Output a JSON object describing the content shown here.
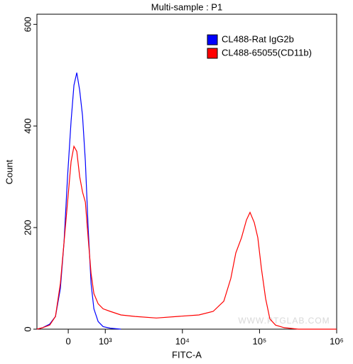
{
  "chart_data": {
    "type": "line",
    "title": "Multi-sample : P1",
    "xlabel": "FITC-A",
    "ylabel": "Count",
    "xscale": "biexponential",
    "xlim": [
      -846,
      1000000
    ],
    "ylim": [
      0,
      620
    ],
    "xticks": [
      0,
      {
        "value": 1000,
        "label": "10³"
      },
      {
        "value": 10000,
        "label": "10⁴"
      },
      {
        "value": 100000,
        "label": "10⁵"
      },
      {
        "value": 1000000,
        "label": "10⁶"
      }
    ],
    "yticks": [
      0,
      200,
      400,
      600
    ],
    "legend": "upper right",
    "watermark": "WWW.PTGLAB.COM",
    "x": [
      -846,
      -692,
      -500,
      -346,
      -212,
      -115,
      -19,
      77,
      154,
      231,
      308,
      385,
      462,
      538,
      615,
      692,
      808,
      942,
      1160,
      1594,
      2434,
      4597,
      8678,
      16390,
      25030,
      34380,
      42490,
      49290,
      58390,
      67700,
      75260,
      85490,
      95040,
      105600,
      120000,
      136200,
      161400,
      208200,
      317900,
      1000000
    ],
    "series": [
      {
        "name": "CL488-Rat IgG2b",
        "color": "#0000ff",
        "values": [
          0,
          3,
          10,
          25,
          80,
          170,
          300,
          410,
          480,
          505,
          470,
          420,
          330,
          200,
          90,
          40,
          15,
          5,
          2,
          0,
          null,
          null,
          null,
          null,
          null,
          null,
          null,
          null,
          null,
          null,
          null,
          null,
          null,
          null,
          null,
          null,
          null,
          null,
          null,
          null
        ]
      },
      {
        "name": "CL488-65055(CD11b)",
        "color": "#ff0000",
        "values": [
          0,
          3,
          8,
          25,
          90,
          170,
          250,
          330,
          360,
          350,
          300,
          270,
          250,
          180,
          110,
          70,
          50,
          40,
          35,
          28,
          25,
          22,
          25,
          28,
          35,
          55,
          100,
          150,
          180,
          215,
          230,
          210,
          180,
          120,
          60,
          20,
          8,
          3,
          0,
          0
        ]
      }
    ]
  }
}
